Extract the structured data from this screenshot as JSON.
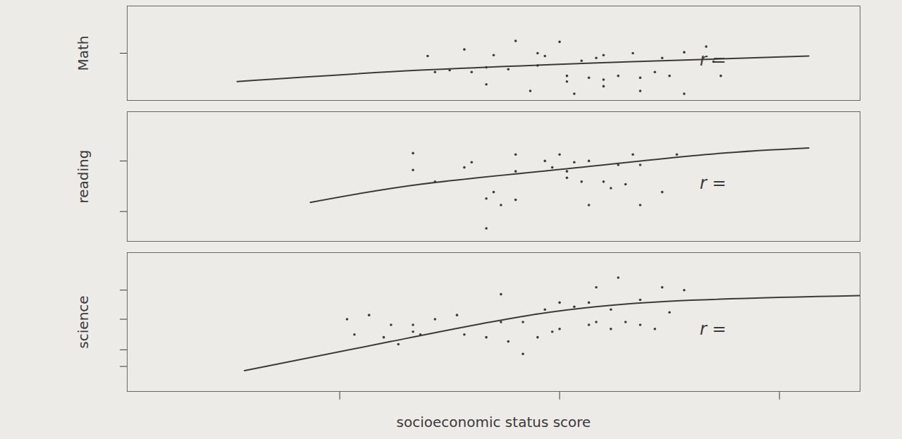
{
  "chart_data": [
    {
      "type": "scatter",
      "ylabel": "Math",
      "annotation": "r =",
      "marker": "dot",
      "color": "#3a3a3a",
      "tick_labels": false,
      "xlim": [
        0,
        10
      ],
      "ylim": [
        0,
        10
      ],
      "yticks": [
        5
      ],
      "x": [
        4.1,
        4.6,
        5.0,
        5.3,
        5.6,
        5.7,
        5.9,
        6.2,
        6.4,
        6.5,
        6.9,
        7.3,
        7.6,
        7.9,
        8.0,
        4.2,
        4.4,
        4.7,
        4.9,
        5.2,
        5.6,
        6.0,
        6.3,
        6.5,
        6.7,
        7.0,
        7.2,
        7.4,
        4.9,
        5.5,
        6.0,
        6.1,
        6.5,
        7.0,
        7.6,
        8.1
      ],
      "y": [
        4.7,
        5.4,
        4.8,
        6.3,
        5.0,
        4.7,
        6.2,
        4.2,
        4.5,
        4.8,
        5.0,
        4.5,
        5.1,
        5.7,
        4.1,
        3.0,
        3.2,
        3.0,
        3.5,
        3.3,
        3.7,
        2.6,
        2.4,
        2.2,
        2.6,
        2.4,
        3.0,
        2.6,
        1.7,
        1.0,
        2.0,
        0.7,
        1.5,
        1.0,
        0.7,
        2.6
      ],
      "trend": {
        "x": [
          1.5,
          4.0,
          6.9,
          9.3
        ],
        "y": [
          2.0,
          3.2,
          4.1,
          4.7
        ]
      }
    },
    {
      "type": "scatter",
      "ylabel": "reading",
      "annotation": "r =",
      "marker": "dot",
      "color": "#3a3a3a",
      "tick_labels": false,
      "xlim": [
        0,
        10
      ],
      "ylim": [
        0,
        10
      ],
      "yticks": [
        2.3,
        6.2
      ],
      "x": [
        3.9,
        3.9,
        4.6,
        4.7,
        5.3,
        5.3,
        5.7,
        5.8,
        5.9,
        6.0,
        6.1,
        6.2,
        6.3,
        6.5,
        6.7,
        6.8,
        6.9,
        7.0,
        7.3,
        7.5,
        5.0,
        4.9,
        5.3,
        5.1,
        6.3,
        7.0,
        4.9,
        4.2,
        6.6,
        6.0
      ],
      "y": [
        6.8,
        5.5,
        5.7,
        6.1,
        6.7,
        5.4,
        6.2,
        5.7,
        6.7,
        5.4,
        6.1,
        4.6,
        6.2,
        4.6,
        5.9,
        4.4,
        6.7,
        5.9,
        3.8,
        6.7,
        3.8,
        3.3,
        3.2,
        2.8,
        2.8,
        2.8,
        1.0,
        4.6,
        4.1,
        4.9
      ],
      "trend": {
        "x": [
          2.5,
          4.0,
          6.0,
          7.9,
          9.3
        ],
        "y": [
          3.0,
          4.4,
          5.6,
          6.7,
          7.2
        ]
      }
    },
    {
      "type": "scatter",
      "ylabel": "science",
      "xlabel": "socioeconomic status score",
      "annotation": "r =",
      "marker": "dot",
      "color": "#3a3a3a",
      "tick_labels": false,
      "xlim": [
        0,
        10
      ],
      "ylim": [
        0,
        10
      ],
      "yticks": [
        1.8,
        3.0,
        5.2,
        7.3
      ],
      "xticks": [
        2.9,
        5.9,
        8.9
      ],
      "x": [
        3.0,
        3.3,
        3.6,
        3.9,
        3.7,
        4.0,
        4.2,
        4.5,
        4.6,
        4.9,
        5.1,
        5.1,
        5.2,
        5.4,
        5.6,
        5.7,
        5.9,
        5.9,
        6.1,
        6.3,
        6.4,
        6.4,
        6.6,
        6.6,
        6.7,
        6.8,
        7.0,
        7.0,
        7.2,
        7.3,
        7.4,
        7.6,
        3.1,
        3.5,
        3.9,
        5.4,
        5.8,
        6.3
      ],
      "y": [
        5.2,
        5.5,
        4.8,
        4.8,
        3.4,
        4.1,
        5.2,
        5.5,
        4.1,
        3.9,
        7.0,
        5.0,
        3.6,
        2.7,
        3.9,
        5.9,
        6.4,
        4.5,
        6.1,
        6.4,
        7.5,
        5.0,
        5.9,
        4.5,
        8.2,
        5.0,
        6.6,
        4.8,
        4.5,
        7.5,
        5.7,
        7.3,
        4.1,
        3.9,
        4.3,
        5.0,
        4.3,
        4.8
      ],
      "trend": {
        "x": [
          1.6,
          3.6,
          5.5,
          7.4,
          10.0
        ],
        "y": [
          1.5,
          3.6,
          5.5,
          6.5,
          6.9
        ]
      }
    }
  ]
}
